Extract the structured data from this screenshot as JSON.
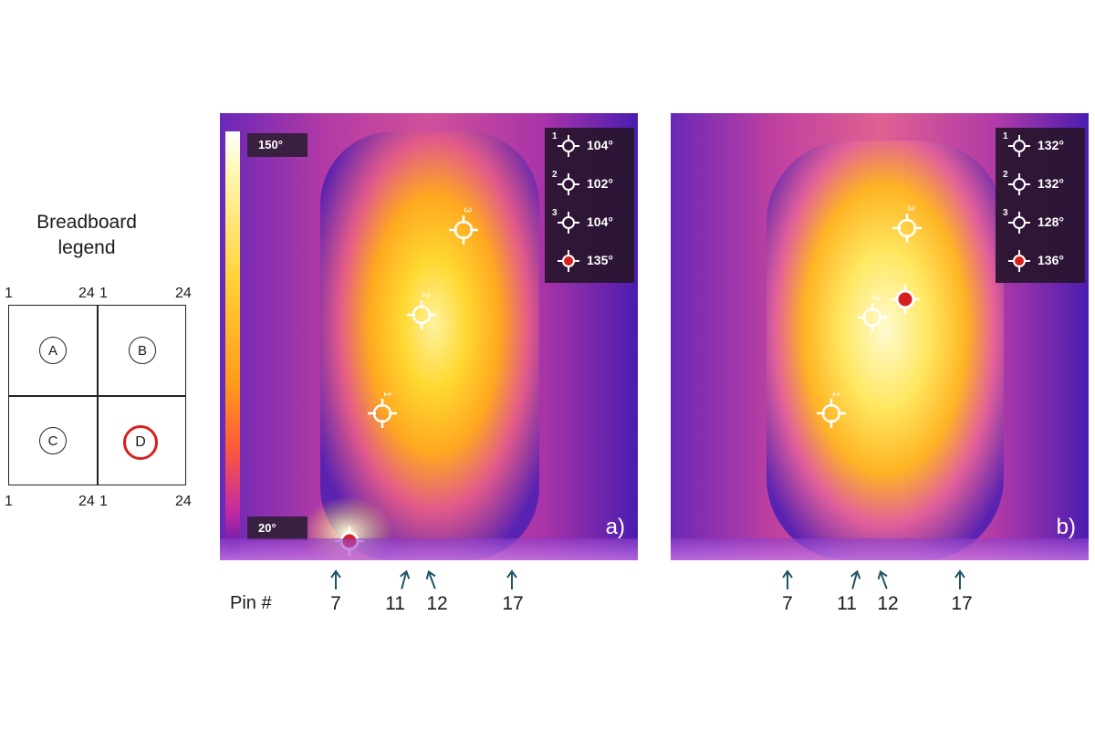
{
  "legend": {
    "title_line1": "Breadboard",
    "title_line2": "legend",
    "top_numbers": [
      "1",
      "24",
      "1",
      "24"
    ],
    "bottom_numbers": [
      "1",
      "24",
      "1",
      "24"
    ],
    "quadrants": [
      "A",
      "B",
      "C",
      "D"
    ],
    "highlighted": "D",
    "highlight_color": "#d81e1e"
  },
  "panels": [
    {
      "tag": "a)",
      "scale_max": "150°",
      "scale_min": "20°",
      "readouts": [
        {
          "index": "1",
          "value": "104°",
          "marker": "crosshair-white"
        },
        {
          "index": "2",
          "value": "102°",
          "marker": "crosshair-white"
        },
        {
          "index": "3",
          "value": "104°",
          "marker": "crosshair-white"
        },
        {
          "index": "",
          "value": "135°",
          "marker": "crosshair-red"
        }
      ],
      "cursor_labels": [
        "1",
        "2",
        "3"
      ]
    },
    {
      "tag": "b)",
      "readouts": [
        {
          "index": "1",
          "value": "132°",
          "marker": "crosshair-white"
        },
        {
          "index": "2",
          "value": "132°",
          "marker": "crosshair-white"
        },
        {
          "index": "3",
          "value": "128°",
          "marker": "crosshair-white"
        },
        {
          "index": "",
          "value": "136°",
          "marker": "crosshair-red"
        }
      ],
      "cursor_labels": [
        "1",
        "2",
        "3"
      ]
    }
  ],
  "pins": {
    "caption": "Pin #",
    "labels": [
      "7",
      "11",
      "12",
      "17"
    ]
  },
  "colors": {
    "hot_marker": "#d81e1e",
    "arrow": "#1f5566"
  }
}
